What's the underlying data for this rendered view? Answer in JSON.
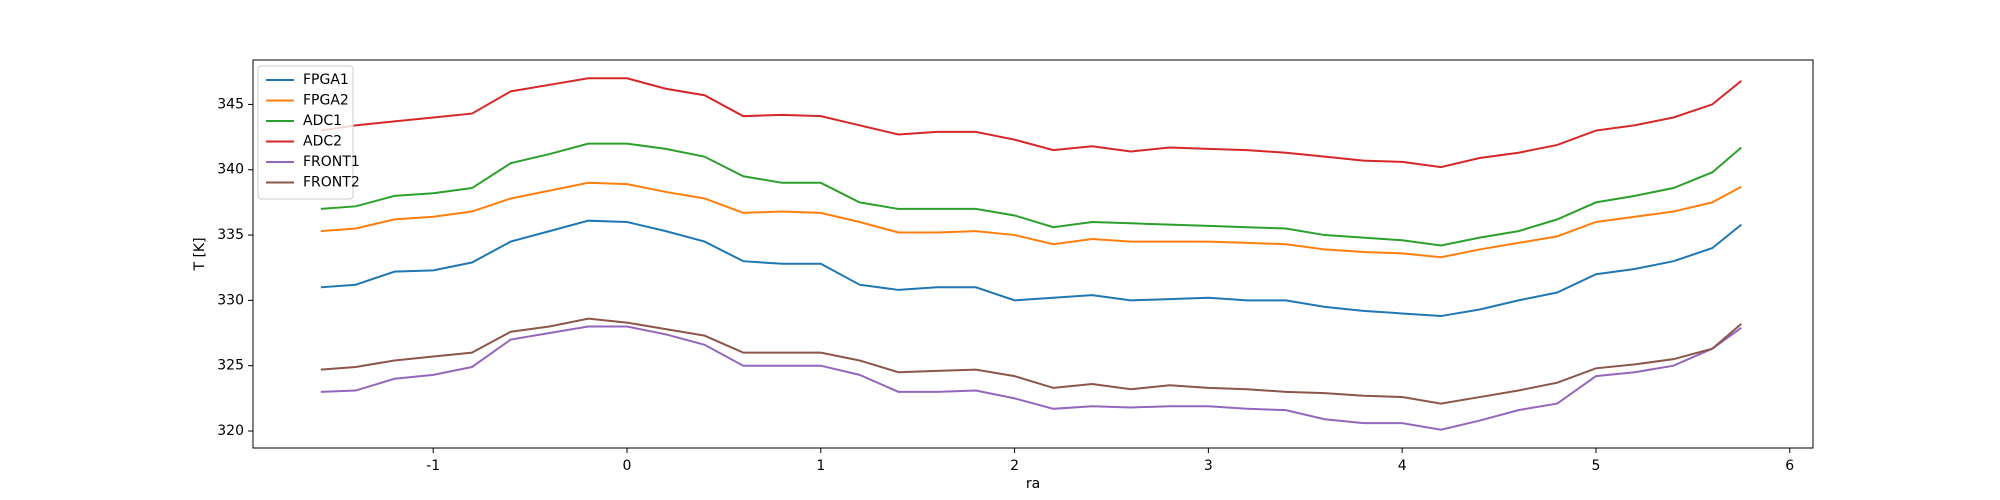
{
  "chart_data": {
    "type": "line",
    "x_label": "ra",
    "y_label": "T [K]",
    "x": [
      -1.58,
      -1.4,
      -1.2,
      -1.0,
      -0.8,
      -0.6,
      -0.4,
      -0.2,
      0,
      0.2,
      0.4,
      0.6,
      0.8,
      1.0,
      1.2,
      1.4,
      1.6,
      1.8,
      2.0,
      2.2,
      2.4,
      2.6,
      2.8,
      3.0,
      3.2,
      3.4,
      3.6,
      3.8,
      4.0,
      4.2,
      4.4,
      4.6,
      4.8,
      5.0,
      5.2,
      5.4,
      5.6,
      5.75
    ],
    "series": [
      {
        "name": "FPGA1",
        "color": "#1f77b4",
        "values": [
          331,
          331.2,
          332.2,
          332.3,
          332.9,
          334.5,
          335.3,
          336.1,
          336,
          335.3,
          334.5,
          333,
          332.8,
          332.8,
          331.2,
          330.8,
          331,
          331,
          330,
          330.2,
          330.4,
          330,
          330.1,
          330.2,
          330,
          330,
          329.5,
          329.2,
          329,
          328.8,
          329.3,
          330,
          330.6,
          332,
          332.4,
          333,
          334,
          335.8
        ]
      },
      {
        "name": "FPGA2",
        "color": "#ff7f0e",
        "values": [
          335.3,
          335.5,
          336.2,
          336.4,
          336.8,
          337.8,
          338.4,
          339,
          338.9,
          338.3,
          337.8,
          336.7,
          336.8,
          336.7,
          336,
          335.2,
          335.2,
          335.3,
          335,
          334.3,
          334.7,
          334.5,
          334.5,
          334.5,
          334.4,
          334.3,
          333.9,
          333.7,
          333.6,
          333.3,
          333.9,
          334.4,
          334.9,
          336,
          336.4,
          336.8,
          337.5,
          338.7
        ]
      },
      {
        "name": "ADC1",
        "color": "#2ca02c",
        "values": [
          337,
          337.2,
          338,
          338.2,
          338.6,
          340.5,
          341.2,
          342,
          342,
          341.6,
          341,
          339.5,
          339,
          339,
          337.5,
          337,
          337,
          337,
          336.5,
          335.6,
          336,
          335.9,
          335.8,
          335.7,
          335.6,
          335.5,
          335,
          334.8,
          334.6,
          334.2,
          334.8,
          335.3,
          336.2,
          337.5,
          338,
          338.6,
          339.8,
          341.7
        ]
      },
      {
        "name": "ADC2",
        "color": "#d62728",
        "values": [
          343,
          343.4,
          343.7,
          344,
          344.3,
          346,
          346.5,
          347,
          347,
          346.2,
          345.7,
          344.1,
          344.2,
          344.1,
          343.4,
          342.7,
          342.9,
          342.9,
          342.3,
          341.5,
          341.8,
          341.4,
          341.7,
          341.6,
          341.5,
          341.3,
          341.0,
          340.7,
          340.6,
          340.2,
          340.9,
          341.3,
          341.9,
          343.0,
          343.4,
          344.0,
          345.0,
          346.8
        ]
      },
      {
        "name": "FRONT1",
        "color": "#9467bd",
        "values": [
          323,
          323.1,
          324,
          324.3,
          324.9,
          327,
          327.5,
          328,
          328,
          327.4,
          326.6,
          325,
          325,
          325,
          324.3,
          323,
          323,
          323.1,
          322.5,
          321.7,
          321.9,
          321.8,
          321.9,
          321.9,
          321.7,
          321.6,
          320.9,
          320.6,
          320.6,
          320.1,
          320.8,
          321.6,
          322.1,
          324.2,
          324.5,
          325,
          326.3,
          327.9
        ]
      },
      {
        "name": "FRONT2",
        "color": "#8c564b",
        "values": [
          324.7,
          324.9,
          325.4,
          325.7,
          326,
          327.6,
          328,
          328.6,
          328.3,
          327.8,
          327.3,
          326,
          326,
          326,
          325.4,
          324.5,
          324.6,
          324.7,
          324.2,
          323.3,
          323.6,
          323.2,
          323.5,
          323.3,
          323.2,
          323,
          322.9,
          322.7,
          322.6,
          322.1,
          322.6,
          323.1,
          323.7,
          324.8,
          325.1,
          325.5,
          326.3,
          328.2
        ]
      }
    ],
    "xlim": [
      -1.93,
      6.12
    ],
    "xticks": [
      -1,
      0,
      1,
      2,
      3,
      4,
      5,
      6
    ],
    "ylim": [
      318.7,
      348.4
    ],
    "yticks": [
      320,
      325,
      330,
      335,
      340,
      345
    ],
    "legend": "upper left",
    "grid": false
  }
}
